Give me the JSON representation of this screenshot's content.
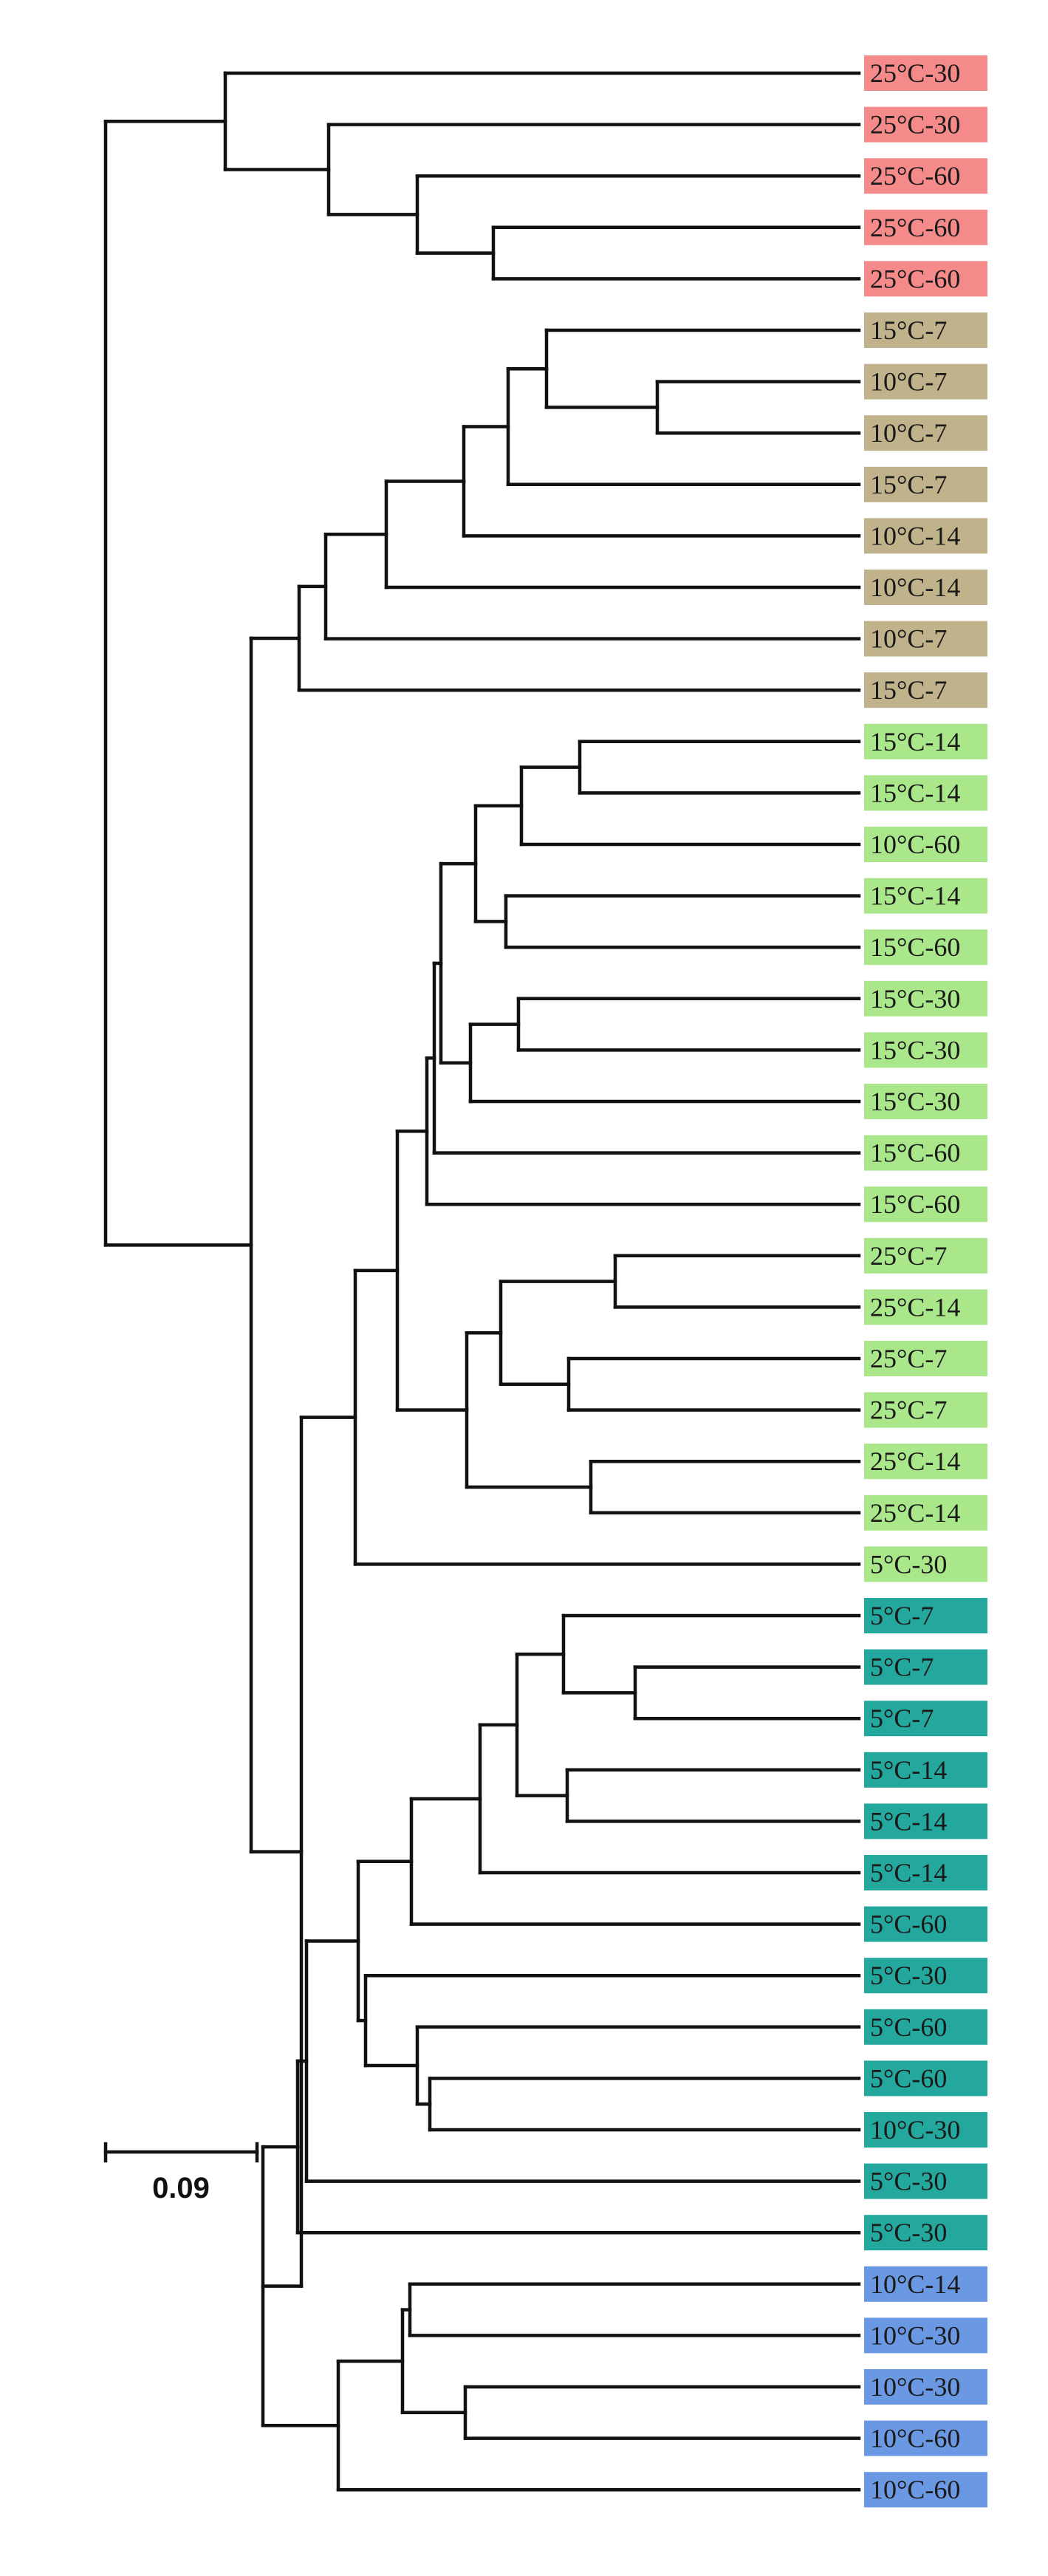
{
  "figure": {
    "type": "dendrogram",
    "scale_bar_label": "0.09",
    "scale_bar_value": 0.09
  },
  "groups": [
    {
      "id": "red",
      "color": "#f48a8a"
    },
    {
      "id": "tan",
      "color": "#c0b28b"
    },
    {
      "id": "lightgreen",
      "color": "#a9e78a"
    },
    {
      "id": "teal",
      "color": "#24a79c"
    },
    {
      "id": "blue",
      "color": "#6a98e2"
    }
  ],
  "leaves": [
    {
      "label": "25°C-30",
      "group": "red"
    },
    {
      "label": "25°C-30",
      "group": "red"
    },
    {
      "label": "25°C-60",
      "group": "red"
    },
    {
      "label": "25°C-60",
      "group": "red"
    },
    {
      "label": "25°C-60",
      "group": "red"
    },
    {
      "label": "15°C-7",
      "group": "tan"
    },
    {
      "label": "10°C-7",
      "group": "tan"
    },
    {
      "label": "10°C-7",
      "group": "tan"
    },
    {
      "label": "15°C-7",
      "group": "tan"
    },
    {
      "label": "10°C-14",
      "group": "tan"
    },
    {
      "label": "10°C-14",
      "group": "tan"
    },
    {
      "label": "10°C-7",
      "group": "tan"
    },
    {
      "label": "15°C-7",
      "group": "tan"
    },
    {
      "label": "15°C-14",
      "group": "lightgreen"
    },
    {
      "label": "15°C-14",
      "group": "lightgreen"
    },
    {
      "label": "10°C-60",
      "group": "lightgreen"
    },
    {
      "label": "15°C-14",
      "group": "lightgreen"
    },
    {
      "label": "15°C-60",
      "group": "lightgreen"
    },
    {
      "label": "15°C-30",
      "group": "lightgreen"
    },
    {
      "label": "15°C-30",
      "group": "lightgreen"
    },
    {
      "label": "15°C-30",
      "group": "lightgreen"
    },
    {
      "label": "15°C-60",
      "group": "lightgreen"
    },
    {
      "label": "15°C-60",
      "group": "lightgreen"
    },
    {
      "label": "25°C-7",
      "group": "lightgreen"
    },
    {
      "label": "25°C-14",
      "group": "lightgreen"
    },
    {
      "label": "25°C-7",
      "group": "lightgreen"
    },
    {
      "label": "25°C-7",
      "group": "lightgreen"
    },
    {
      "label": "25°C-14",
      "group": "lightgreen"
    },
    {
      "label": "25°C-14",
      "group": "lightgreen"
    },
    {
      "label": "5°C-30",
      "group": "lightgreen"
    },
    {
      "label": "5°C-7",
      "group": "teal"
    },
    {
      "label": "5°C-7",
      "group": "teal"
    },
    {
      "label": "5°C-7",
      "group": "teal"
    },
    {
      "label": "5°C-14",
      "group": "teal"
    },
    {
      "label": "5°C-14",
      "group": "teal"
    },
    {
      "label": "5°C-14",
      "group": "teal"
    },
    {
      "label": "5°C-60",
      "group": "teal"
    },
    {
      "label": "5°C-30",
      "group": "teal"
    },
    {
      "label": "5°C-60",
      "group": "teal"
    },
    {
      "label": "5°C-60",
      "group": "teal"
    },
    {
      "label": "10°C-30",
      "group": "teal"
    },
    {
      "label": "5°C-30",
      "group": "teal"
    },
    {
      "label": "5°C-30",
      "group": "teal"
    },
    {
      "label": "10°C-14",
      "group": "blue"
    },
    {
      "label": "10°C-30",
      "group": "blue"
    },
    {
      "label": "10°C-30",
      "group": "blue"
    },
    {
      "label": "10°C-60",
      "group": "blue"
    },
    {
      "label": "10°C-60",
      "group": "blue"
    }
  ]
}
